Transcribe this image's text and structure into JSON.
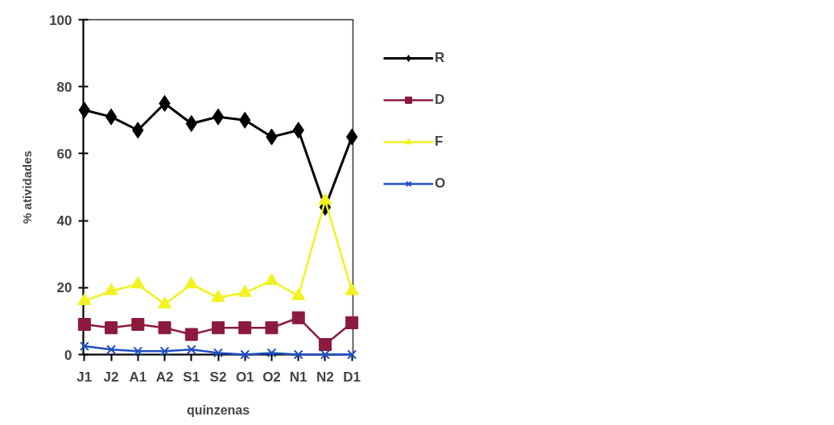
{
  "chart_data": {
    "type": "line",
    "xlabel": "quinzenas",
    "ylabel": "% atividades",
    "categories": [
      "J1",
      "J2",
      "A1",
      "A2",
      "S1",
      "S2",
      "O1",
      "O2",
      "N1",
      "N2",
      "D1"
    ],
    "series": [
      {
        "name": "R",
        "color": "#000000",
        "marker": "diamond",
        "values": [
          73,
          71,
          67,
          75,
          69,
          71,
          70,
          65,
          67,
          44,
          65
        ]
      },
      {
        "name": "D",
        "color": "#8b1a3c",
        "marker": "square",
        "values": [
          9,
          8,
          9,
          8,
          6,
          8,
          8,
          8,
          11,
          3,
          9.5
        ]
      },
      {
        "name": "F",
        "color": "#f2f21e",
        "marker": "triangle",
        "values": [
          16,
          19,
          21,
          15,
          21,
          17,
          18.5,
          22,
          17.5,
          46,
          19
        ]
      },
      {
        "name": "O",
        "color": "#1f4fc4",
        "marker": "cross",
        "values": [
          2.5,
          1.5,
          1,
          1,
          1.5,
          0.5,
          0,
          0.5,
          0,
          0,
          0
        ]
      }
    ],
    "ylim": [
      0,
      100
    ],
    "yticks": [
      0,
      20,
      40,
      60,
      80,
      100
    ],
    "grid": false,
    "legend": "right",
    "line_style": "solid"
  }
}
